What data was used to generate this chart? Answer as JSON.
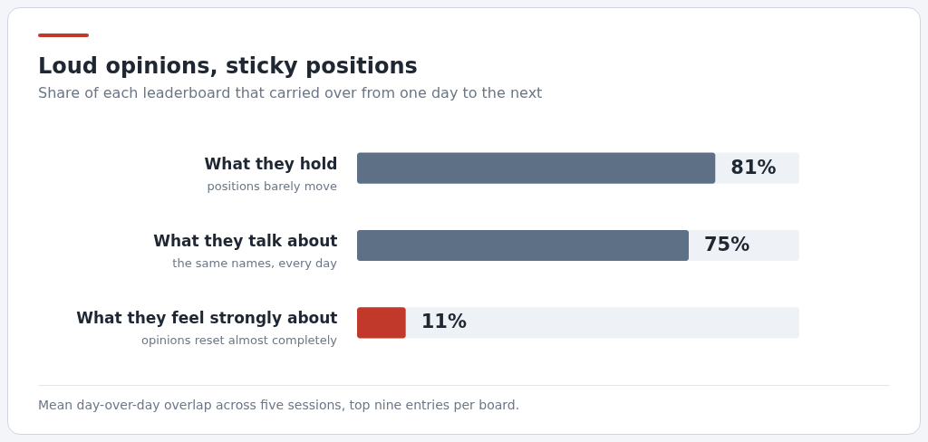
{
  "chart_data": {
    "type": "bar",
    "orientation": "horizontal",
    "title": "Loud opinions, sticky positions",
    "subtitle": "Share of each leaderboard that carried over from one day to the next",
    "categories": [
      "What they hold",
      "What they talk about",
      "What they feel strongly about"
    ],
    "values": [
      81,
      75,
      11
    ],
    "colors": [
      "#5e7086",
      "#5e7086",
      "#c0392b"
    ],
    "value_labels": [
      "81%",
      "75%",
      "11%"
    ],
    "xlim": [
      0,
      100
    ],
    "tick_labels": "y",
    "annotations": [
      "positions barely move",
      "the same names, every day",
      "opinions reset almost completely",
      "Mean day-over-day overlap across five sessions, top nine entries per board."
    ]
  }
}
